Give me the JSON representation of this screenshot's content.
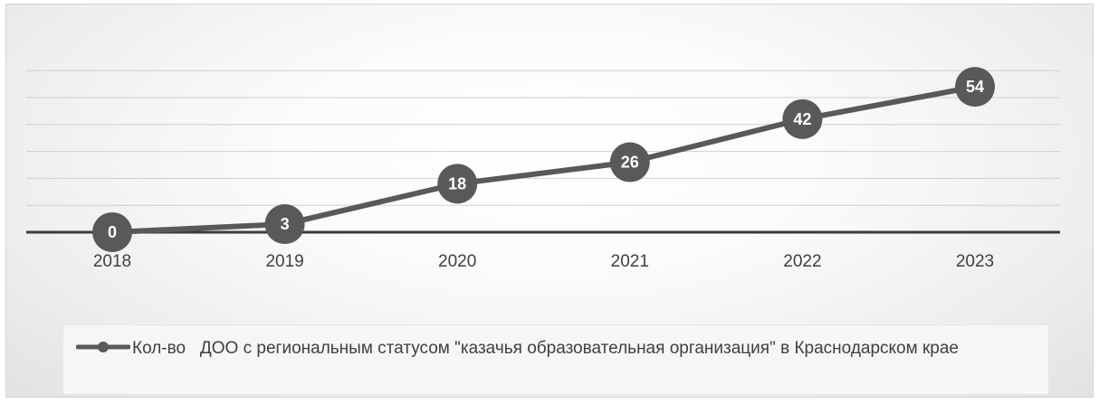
{
  "chart_data": {
    "type": "line",
    "categories": [
      "2018",
      "2019",
      "2020",
      "2021",
      "2022",
      "2023"
    ],
    "series": [
      {
        "name": "Кол-во   ДОО с региональным статусом \"казачья образовательная организация\" в Краснодарском крае",
        "values": [
          0,
          3,
          18,
          26,
          42,
          54
        ]
      }
    ],
    "ylim": [
      0,
      60
    ],
    "grid": true,
    "data_labels": true,
    "legend_position": "bottom",
    "colors": {
      "series": "#595959",
      "axis": "#3a3a3a",
      "grid": "#d0d0d0",
      "label_text": "#ffffff"
    }
  }
}
